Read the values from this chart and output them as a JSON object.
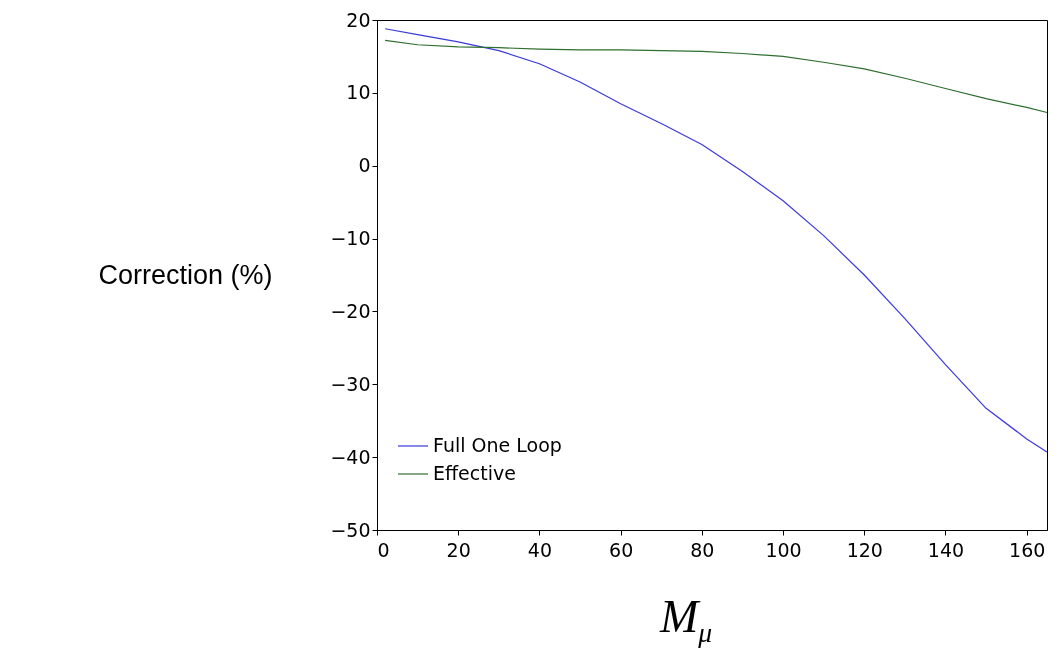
{
  "chart_data": {
    "type": "line",
    "xlabel": "M$_{μ}$",
    "ylabel": "Correction (%)",
    "x": [
      2,
      10,
      20,
      30,
      40,
      50,
      60,
      70,
      80,
      90,
      100,
      110,
      120,
      130,
      140,
      150,
      160,
      165
    ],
    "series": [
      {
        "name": "Full One Loop",
        "color": "#3a3ade",
        "values": [
          18.8,
          18,
          17,
          15.8,
          14,
          11.5,
          8.5,
          5.8,
          2.9,
          -0.8,
          -4.8,
          -9.6,
          -15,
          -21,
          -27.3,
          -33.3,
          -37.5,
          -39.3
        ]
      },
      {
        "name": "Effective",
        "color": "#2e6e2e",
        "values": [
          17.2,
          16.6,
          16.3,
          16.2,
          16,
          15.9,
          15.9,
          15.8,
          15.7,
          15.4,
          15,
          14.2,
          13.3,
          12,
          10.6,
          9.2,
          8,
          7.3
        ]
      }
    ],
    "xlim": [
      0,
      165
    ],
    "ylim": [
      -50,
      20
    ],
    "xticks": [
      0,
      20,
      40,
      60,
      80,
      100,
      120,
      140,
      160
    ],
    "yticks": [
      -50,
      -40,
      -30,
      -20,
      -10,
      0,
      10,
      20
    ],
    "legend": "bottom left",
    "grid": false,
    "line_style": "solid",
    "marker": "none"
  }
}
